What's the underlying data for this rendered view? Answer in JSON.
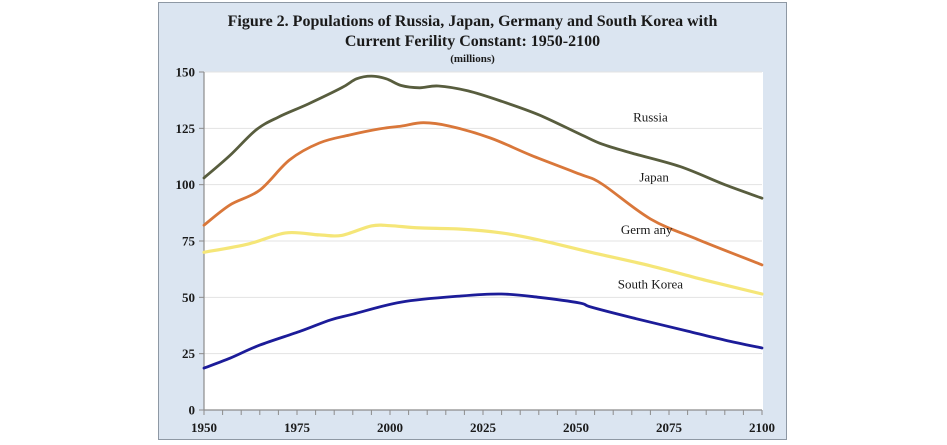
{
  "chart_data": {
    "type": "line",
    "title": "Figure 2. Populations of Russia, Japan, Germany and South Korea with",
    "title_line2": "Current Ferility Constant: 1950-2100",
    "subtitle": "(millions)",
    "xlabel": "",
    "ylabel": "",
    "xlim": [
      1950,
      2100
    ],
    "ylim": [
      0,
      150
    ],
    "x_ticks": [
      1950,
      1975,
      2000,
      2025,
      2050,
      2075,
      2100
    ],
    "x_tick_labels": [
      "1950",
      "1975",
      "2000",
      "2025",
      "2050",
      "2075",
      "2100"
    ],
    "x_minor_step": 5,
    "y_ticks": [
      0,
      25,
      50,
      75,
      100,
      125,
      150
    ],
    "y_tick_labels": [
      "0",
      "25",
      "50",
      "75",
      "100",
      "125",
      "150"
    ],
    "grid": true,
    "legend": "inline-labels",
    "series": [
      {
        "name": "Russia",
        "label": "Russia",
        "color": "#585d3e",
        "x": [
          1950,
          1957,
          1964,
          1970,
          1978,
          1987,
          1991,
          1995,
          1999,
          2003,
          2008,
          2013,
          2021,
          2030,
          2040,
          2051,
          2057,
          2065,
          2078,
          2090,
          2100
        ],
        "values": [
          103,
          113,
          124.3,
          130,
          135.8,
          143,
          147,
          148.2,
          147,
          144,
          143,
          143.8,
          141.6,
          137,
          131,
          122.5,
          118,
          114,
          108,
          100,
          94
        ]
      },
      {
        "name": "Japan",
        "label": "Japan",
        "color": "#d9773a",
        "x": [
          1950,
          1957,
          1965,
          1973,
          1981,
          1989,
          1997,
          2003,
          2009,
          2016,
          2027,
          2038,
          2051,
          2057,
          2070,
          2083,
          2100
        ],
        "values": [
          82,
          91,
          97.6,
          111,
          118.5,
          122,
          124.7,
          126,
          127.5,
          126,
          120.7,
          113,
          104.7,
          100.3,
          84.8,
          75.5,
          64.4
        ]
      },
      {
        "name": "Germany",
        "label": "Germ any",
        "color": "#f5e678",
        "x": [
          1950,
          1962,
          1972,
          1981,
          1987,
          1995,
          2000,
          2008,
          2019,
          2030,
          2040,
          2054,
          2070,
          2085,
          2100
        ],
        "values": [
          70,
          73.7,
          78.6,
          77.7,
          77.5,
          81.7,
          81.8,
          80.8,
          80.3,
          78.6,
          75.5,
          70,
          64,
          57.5,
          51.5
        ]
      },
      {
        "name": "South Korea",
        "label": "South Korea",
        "color": "#1c1c99",
        "x": [
          1950,
          1957,
          1965,
          1976,
          1984,
          1990,
          2003,
          2019,
          2030,
          2040,
          2051,
          2054,
          2065,
          2080,
          2090,
          2100
        ],
        "values": [
          18.6,
          23,
          28.8,
          35,
          40,
          42.5,
          47.9,
          50.6,
          51.5,
          50,
          47.5,
          45.7,
          41,
          35,
          31,
          27.5
        ]
      }
    ]
  }
}
